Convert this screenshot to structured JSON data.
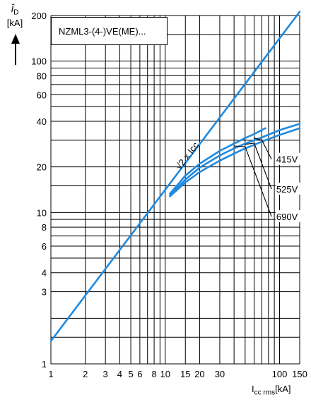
{
  "chart_data": {
    "type": "line",
    "box_label": "NZML3-(4-)VE(ME)...",
    "x_scale": "log",
    "y_scale": "log",
    "xlim": [
      1,
      150
    ],
    "ylim": [
      1,
      200
    ],
    "grid": true,
    "color": "#1e8ae0",
    "xlabel": {
      "main": "I",
      "sub": "cc rms",
      "unit": "[kA]"
    },
    "ylabel": {
      "main": "Î",
      "sub": "D",
      "unit": "[kA]"
    },
    "x_ticks": [
      {
        "v": 1,
        "label": "1"
      },
      {
        "v": 2,
        "label": "2"
      },
      {
        "v": 3,
        "label": "3"
      },
      {
        "v": 4,
        "label": "4"
      },
      {
        "v": 5,
        "label": "5"
      },
      {
        "v": 6,
        "label": "6"
      },
      {
        "v": 8,
        "label": "8"
      },
      {
        "v": 10,
        "label": "10"
      },
      {
        "v": 15,
        "label": "15"
      },
      {
        "v": 20,
        "label": "20"
      },
      {
        "v": 30,
        "label": "30"
      },
      {
        "v": 100,
        "label": "100"
      },
      {
        "v": 150,
        "label": "150"
      }
    ],
    "y_ticks": [
      {
        "v": 1,
        "label": "1"
      },
      {
        "v": 3,
        "label": "3"
      },
      {
        "v": 4,
        "label": "4"
      },
      {
        "v": 6,
        "label": "6"
      },
      {
        "v": 8,
        "label": "8"
      },
      {
        "v": 10,
        "label": "10"
      },
      {
        "v": 20,
        "label": "20"
      },
      {
        "v": 40,
        "label": "40"
      },
      {
        "v": 60,
        "label": "60"
      },
      {
        "v": 80,
        "label": "80"
      },
      {
        "v": 100,
        "label": "100"
      },
      {
        "v": 200,
        "label": "200"
      }
    ],
    "x_grid": [
      1,
      2,
      3,
      4,
      5,
      6,
      7,
      8,
      9,
      10,
      15,
      20,
      30,
      40,
      50,
      60,
      70,
      80,
      90,
      100,
      150
    ],
    "y_grid": [
      1,
      1.5,
      2,
      3,
      4,
      5,
      6,
      7,
      8,
      9,
      10,
      15,
      20,
      30,
      40,
      50,
      60,
      70,
      80,
      90,
      100,
      150,
      200
    ],
    "series": [
      {
        "name": "√2 x Icc",
        "points": [
          [
            1,
            1.414
          ],
          [
            150,
            212
          ]
        ]
      },
      {
        "name": "415V",
        "points": [
          [
            11,
            13.3
          ],
          [
            15,
            17.5
          ],
          [
            20,
            21
          ],
          [
            30,
            25.5
          ],
          [
            40,
            28.5
          ],
          [
            50,
            31
          ],
          [
            60,
            33
          ],
          [
            75,
            36
          ]
        ]
      },
      {
        "name": "525V",
        "points": [
          [
            11,
            13
          ],
          [
            15,
            16.5
          ],
          [
            20,
            19.8
          ],
          [
            30,
            23.8
          ],
          [
            40,
            26.5
          ],
          [
            50,
            28.5
          ],
          [
            60,
            30
          ],
          [
            75,
            32
          ],
          [
            100,
            35
          ],
          [
            150,
            38.5
          ]
        ]
      },
      {
        "name": "690V",
        "points": [
          [
            11,
            12.8
          ],
          [
            15,
            15.8
          ],
          [
            20,
            18.5
          ],
          [
            30,
            22
          ],
          [
            40,
            24.5
          ],
          [
            50,
            26.5
          ],
          [
            60,
            28
          ],
          [
            75,
            30
          ],
          [
            100,
            32.5
          ],
          [
            150,
            36
          ]
        ]
      }
    ],
    "annotations": [
      {
        "text": "415V",
        "x": 95,
        "y": 22.5,
        "anchor": [
          [
            60,
            31
          ],
          [
            70,
            30
          ],
          [
            85,
            22.5
          ]
        ]
      },
      {
        "text": "525V",
        "x": 95,
        "y": 14.3,
        "anchor": [
          [
            50,
            28.2
          ],
          [
            60,
            28.7
          ],
          [
            85,
            14.3
          ]
        ]
      },
      {
        "text": "690V",
        "x": 95,
        "y": 9.4,
        "anchor": [
          [
            40,
            27.5
          ],
          [
            50,
            27.2
          ],
          [
            85,
            9.4
          ]
        ]
      }
    ]
  }
}
